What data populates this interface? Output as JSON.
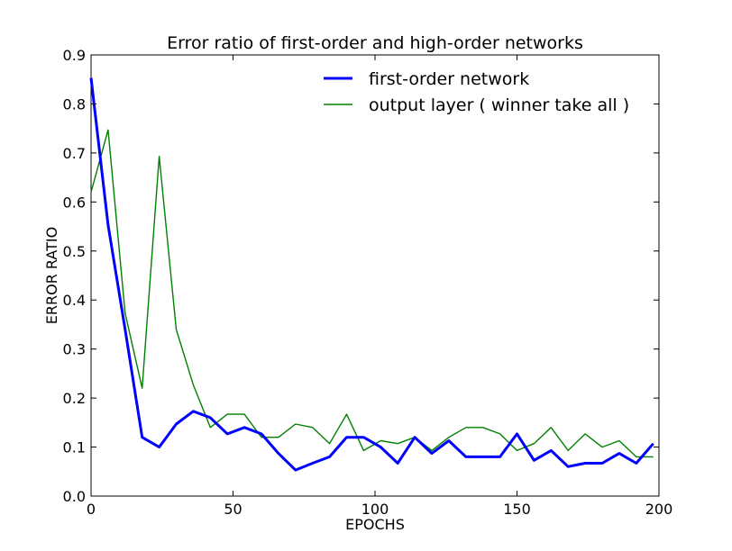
{
  "chart_data": {
    "type": "line",
    "title": "Error ratio of first-order and high-order networks",
    "xlabel": "EPOCHS",
    "ylabel": "ERROR RATIO",
    "xlim": [
      0,
      200
    ],
    "ylim": [
      0,
      0.9
    ],
    "xticks": [
      0,
      50,
      100,
      150,
      200
    ],
    "yticks": [
      0.0,
      0.1,
      0.2,
      0.3,
      0.4,
      0.5,
      0.6,
      0.7,
      0.8,
      0.9
    ],
    "xtick_labels": [
      "0",
      "50",
      "100",
      "150",
      "200"
    ],
    "ytick_labels": [
      "0.0",
      "0.1",
      "0.2",
      "0.3",
      "0.4",
      "0.5",
      "0.6",
      "0.7",
      "0.8",
      "0.9"
    ],
    "grid": false,
    "legend_position": "top-right",
    "series": [
      {
        "name": "first-order network",
        "color": "#0000ff",
        "x": [
          0,
          6,
          12,
          18,
          24,
          30,
          36,
          42,
          48,
          54,
          60,
          66,
          72,
          78,
          84,
          90,
          96,
          102,
          108,
          114,
          120,
          126,
          132,
          138,
          144,
          150,
          156,
          162,
          168,
          174,
          180,
          186,
          192,
          198
        ],
        "y": [
          0.853,
          0.553,
          0.34,
          0.12,
          0.1,
          0.147,
          0.173,
          0.16,
          0.127,
          0.14,
          0.127,
          0.087,
          0.053,
          0.067,
          0.08,
          0.12,
          0.12,
          0.1,
          0.067,
          0.12,
          0.087,
          0.113,
          0.08,
          0.08,
          0.08,
          0.127,
          0.073,
          0.093,
          0.06,
          0.067,
          0.067,
          0.087,
          0.067,
          0.107
        ]
      },
      {
        "name": "output layer ( winner take all )",
        "color": "#008000",
        "x": [
          0,
          6,
          12,
          18,
          24,
          30,
          36,
          42,
          48,
          54,
          60,
          66,
          72,
          78,
          84,
          90,
          96,
          102,
          108,
          114,
          120,
          126,
          132,
          138,
          144,
          150,
          156,
          162,
          168,
          174,
          180,
          186,
          192,
          198
        ],
        "y": [
          0.62,
          0.747,
          0.373,
          0.22,
          0.693,
          0.34,
          0.227,
          0.14,
          0.167,
          0.167,
          0.12,
          0.12,
          0.147,
          0.14,
          0.107,
          0.167,
          0.093,
          0.113,
          0.107,
          0.12,
          0.093,
          0.12,
          0.14,
          0.14,
          0.127,
          0.093,
          0.107,
          0.14,
          0.093,
          0.127,
          0.1,
          0.113,
          0.08,
          0.08
        ]
      }
    ]
  }
}
